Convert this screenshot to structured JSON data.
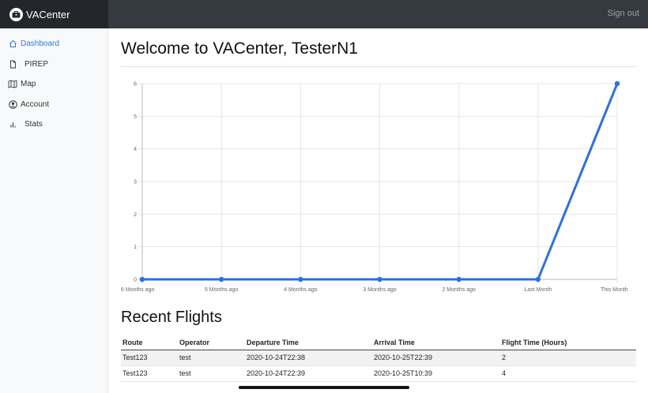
{
  "brand": {
    "name": "VACenter",
    "icon": "briefcase-icon"
  },
  "header": {
    "signout_label": "Sign out"
  },
  "sidebar": {
    "items": [
      {
        "label": "Dashboard",
        "icon": "home-icon",
        "active": true
      },
      {
        "label": "PIREP",
        "icon": "file-icon"
      },
      {
        "label": "Map",
        "icon": "map-icon"
      },
      {
        "label": "Account",
        "icon": "user-circle-icon"
      },
      {
        "label": "Stats",
        "icon": "bar-chart-icon"
      }
    ]
  },
  "main": {
    "title": "Welcome to VACenter, TesterN1",
    "recent_title": "Recent Flights"
  },
  "chart_data": {
    "type": "line",
    "categories": [
      "6 Months ago",
      "5 Months ago",
      "4 Months ago",
      "3 Months ago",
      "2 Months ago",
      "Last Month",
      "This Month"
    ],
    "values": [
      0,
      0,
      0,
      0,
      0,
      0,
      6
    ],
    "ylim": [
      0,
      6
    ],
    "yticks": [
      0,
      1,
      2,
      3,
      4,
      5,
      6
    ],
    "grid": true,
    "color": "#2c6fe6"
  },
  "flights": {
    "columns": [
      "Route",
      "Operator",
      "Departure Time",
      "Arrival Time",
      "Flight Time (Hours)"
    ],
    "rows": [
      [
        "Test123",
        "test",
        "2020-10-24T22:38",
        "2020-10-25T22:39",
        "2"
      ],
      [
        "Test123",
        "test",
        "2020-10-24T22:39",
        "2020-10-25T10:39",
        "4"
      ]
    ]
  }
}
